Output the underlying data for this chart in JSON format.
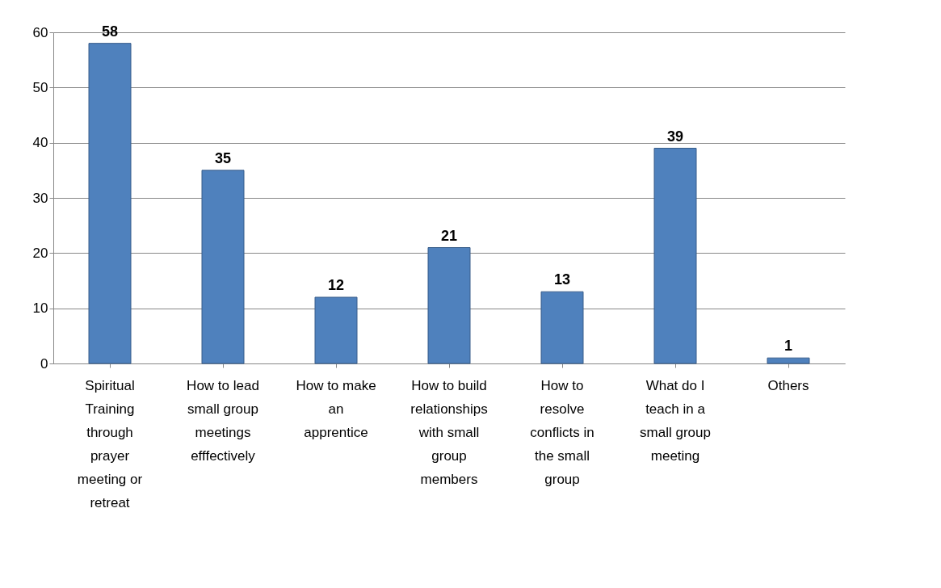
{
  "chart_data": {
    "type": "bar",
    "categories": [
      "Spiritual Training through prayer meeting or retreat",
      "How to lead small group meetings efffectively",
      "How to make an apprentice",
      "How to build relationships with small group members",
      "How to resolve conflicts in the small group",
      "What do I teach in a small group meeting",
      "Others"
    ],
    "values": [
      58,
      35,
      12,
      21,
      13,
      39,
      1
    ],
    "color": "#4f81bd",
    "ylim": [
      0,
      60
    ],
    "yticks": [
      0,
      10,
      20,
      30,
      40,
      50,
      60
    ],
    "grid": "y",
    "data_labels": true
  }
}
